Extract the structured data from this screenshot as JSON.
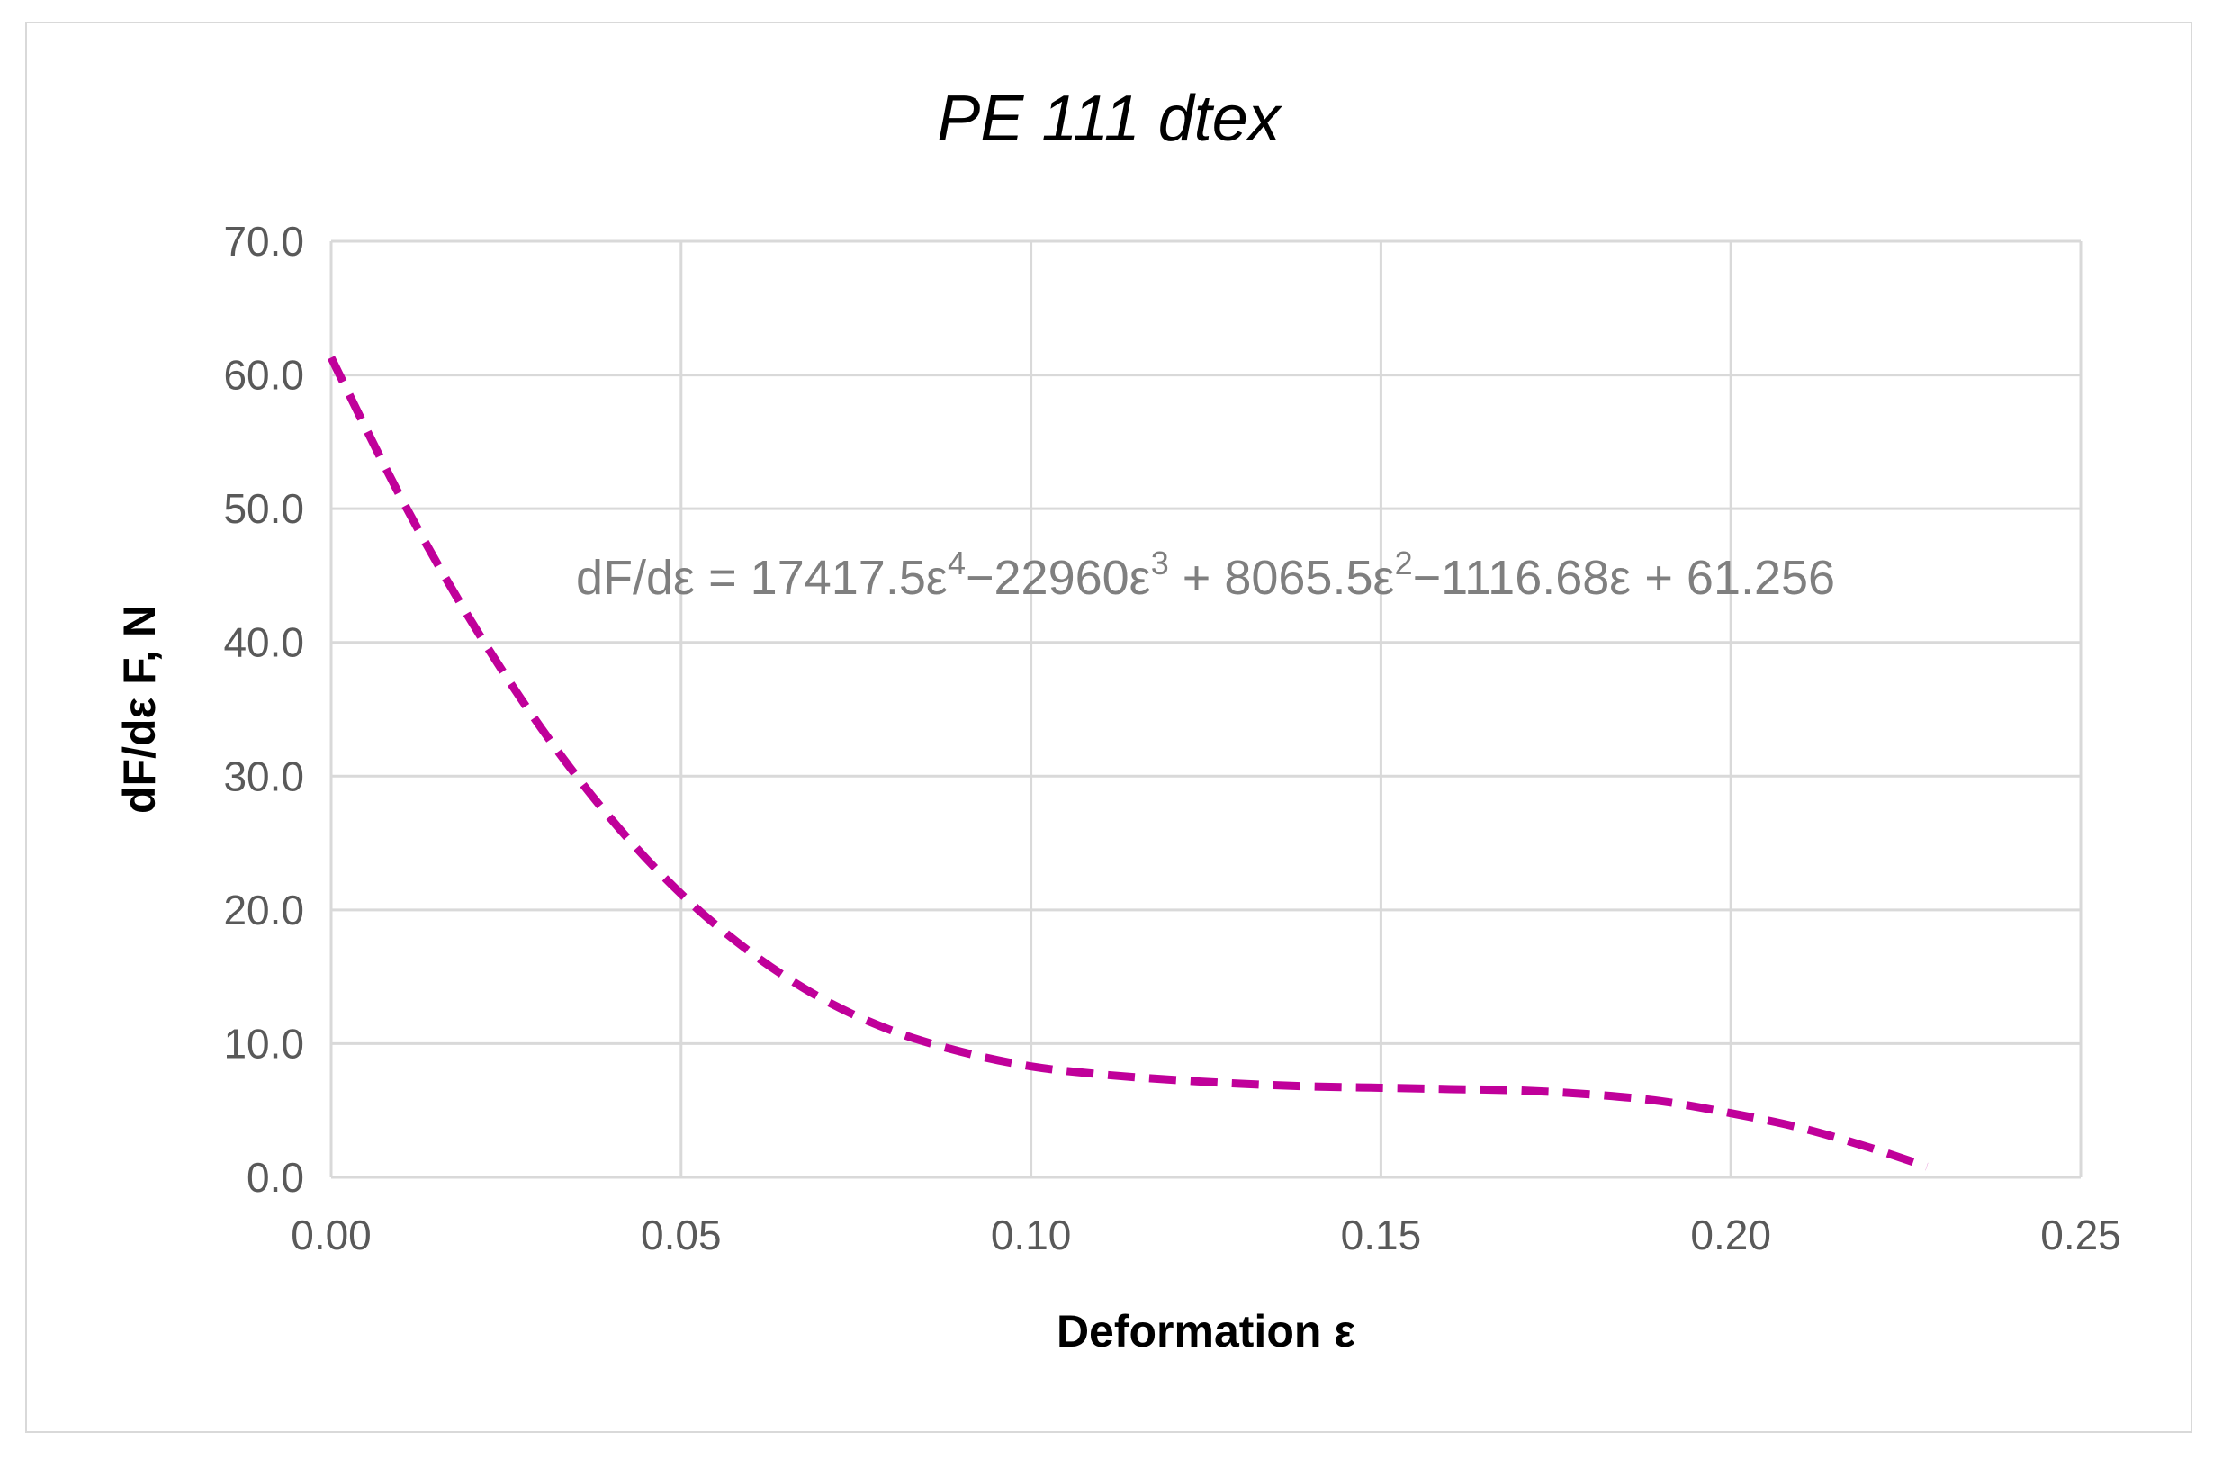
{
  "chart_data": {
    "type": "line",
    "title": "PE 111 dtex",
    "xlabel": "Deformation ε",
    "ylabel": "dF/dε F, N",
    "xlim": [
      0,
      0.25
    ],
    "ylim": [
      0,
      70
    ],
    "x_ticks": [
      "0.00",
      "0.05",
      "0.10",
      "0.15",
      "0.20",
      "0.25"
    ],
    "y_ticks": [
      "0.0",
      "10.0",
      "20.0",
      "30.0",
      "40.0",
      "50.0",
      "60.0",
      "70.0"
    ],
    "grid": true,
    "annotation": {
      "lhs": "dF/dε = 17417.5ε",
      "p4": "4",
      "t2": "−22960ε",
      "p3": "3",
      "t3": " + 8065.5ε",
      "p2": "2",
      "t4": "−1116.68ε + 61.256"
    },
    "series": [
      {
        "color": "#c0009a",
        "style": "dashed",
        "x": [
          0,
          0.01,
          0.02,
          0.03,
          0.04,
          0.05,
          0.06,
          0.07,
          0.08,
          0.09,
          0.1,
          0.11,
          0.12,
          0.13,
          0.14,
          0.15,
          0.16,
          0.17,
          0.18,
          0.19,
          0.2,
          0.21,
          0.22,
          0.228
        ],
        "y": [
          61.3,
          50.8,
          41.6,
          33.6,
          26.8,
          21.2,
          16.8,
          13.4,
          11.0,
          9.4,
          8.3,
          7.7,
          7.3,
          7.0,
          6.8,
          6.7,
          6.6,
          6.5,
          6.2,
          5.7,
          4.8,
          3.7,
          2.2,
          0.8
        ]
      }
    ]
  }
}
